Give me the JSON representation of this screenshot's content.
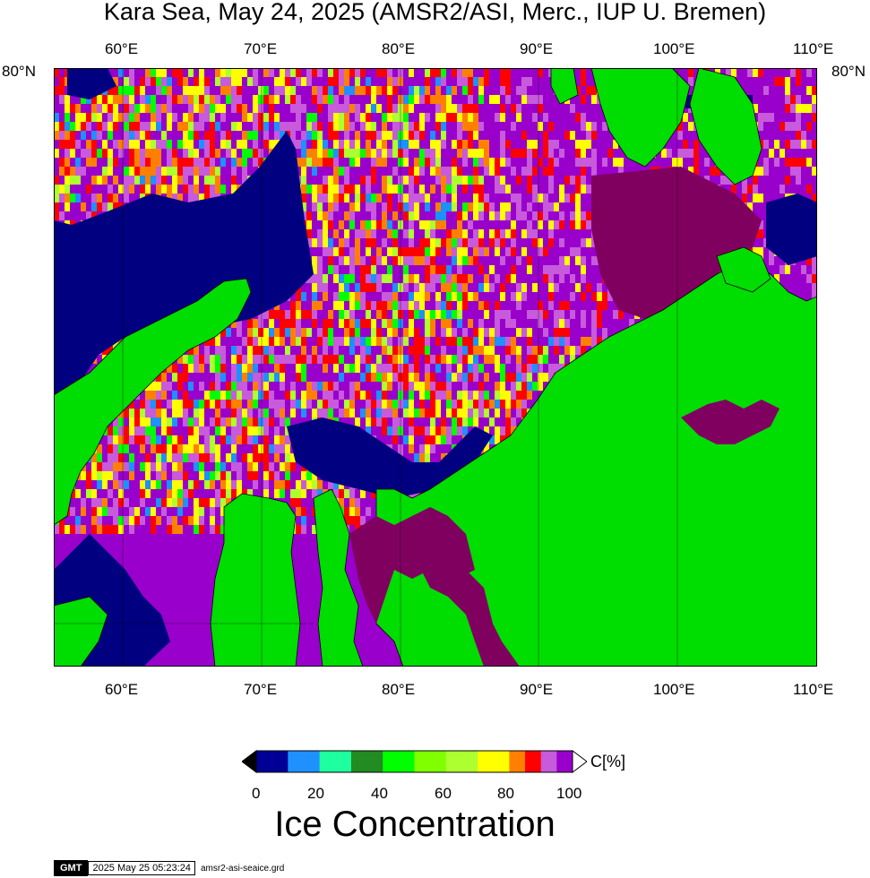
{
  "title": "Kara Sea, May 24, 2025 (AMSR2/ASI, Merc., IUP U. Bremen)",
  "map": {
    "longitude_ticks": [
      "60°E",
      "70°E",
      "80°E",
      "90°E",
      "100°E",
      "110°E"
    ],
    "latitude_ticks": [
      "80°N"
    ],
    "colors": {
      "land": "#00dd00",
      "open_water": "#000080",
      "coastline": "#000000"
    }
  },
  "colorbar": {
    "unit": "C[%]",
    "ticks": [
      "0",
      "20",
      "40",
      "60",
      "80",
      "100"
    ],
    "bins": [
      {
        "from": 0,
        "to": 10,
        "color": "#000096"
      },
      {
        "from": 10,
        "to": 20,
        "color": "#1e90ff"
      },
      {
        "from": 20,
        "to": 30,
        "color": "#1effa0"
      },
      {
        "from": 30,
        "to": 40,
        "color": "#228b22"
      },
      {
        "from": 40,
        "to": 50,
        "color": "#00ff00"
      },
      {
        "from": 50,
        "to": 60,
        "color": "#7fff00"
      },
      {
        "from": 60,
        "to": 70,
        "color": "#adff2f"
      },
      {
        "from": 70,
        "to": 80,
        "color": "#ffff00"
      },
      {
        "from": 80,
        "to": 85,
        "color": "#ff8000"
      },
      {
        "from": 85,
        "to": 90,
        "color": "#ff0000"
      },
      {
        "from": 90,
        "to": 95,
        "color": "#c85adc"
      },
      {
        "from": 95,
        "to": 100,
        "color": "#9900cc"
      }
    ]
  },
  "legend_title": "Ice Concentration",
  "footer": {
    "logo": "GMT",
    "timestamp": "2025 May 25 05:23:24",
    "filename": "amsr2-asi-seaice.grd"
  }
}
